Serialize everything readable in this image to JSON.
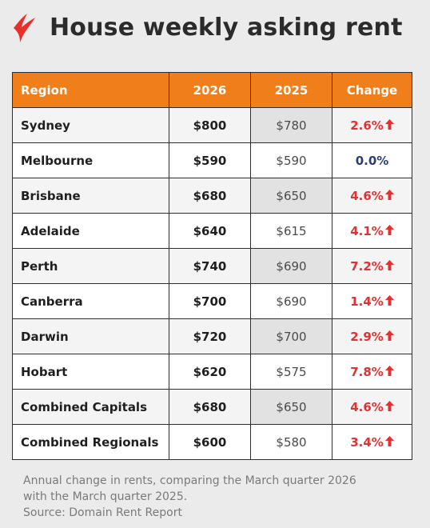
{
  "title": "House weekly asking rent",
  "headers": {
    "region": "Region",
    "y2026": "2026",
    "y2025": "2025",
    "change": "Change"
  },
  "chart_data": {
    "type": "table",
    "columns": [
      "Region",
      "2026",
      "2025",
      "Change"
    ],
    "rows": [
      {
        "region": "Sydney",
        "y2026": "$800",
        "y2025": "$780",
        "change": "2.6%",
        "direction": "up"
      },
      {
        "region": "Melbourne",
        "y2026": "$590",
        "y2025": "$590",
        "change": "0.0%",
        "direction": "flat"
      },
      {
        "region": "Brisbane",
        "y2026": "$680",
        "y2025": "$650",
        "change": "4.6%",
        "direction": "up"
      },
      {
        "region": "Adelaide",
        "y2026": "$640",
        "y2025": "$615",
        "change": "4.1%",
        "direction": "up"
      },
      {
        "region": "Perth",
        "y2026": "$740",
        "y2025": "$690",
        "change": "7.2%",
        "direction": "up"
      },
      {
        "region": "Canberra",
        "y2026": "$700",
        "y2025": "$690",
        "change": "1.4%",
        "direction": "up"
      },
      {
        "region": "Darwin",
        "y2026": "$720",
        "y2025": "$700",
        "change": "2.9%",
        "direction": "up"
      },
      {
        "region": "Hobart",
        "y2026": "$620",
        "y2025": "$575",
        "change": "7.8%",
        "direction": "up"
      },
      {
        "region": "Combined Capitals",
        "y2026": "$680",
        "y2025": "$650",
        "change": "4.6%",
        "direction": "up"
      },
      {
        "region": "Combined Regionals",
        "y2026": "$600",
        "y2025": "$580",
        "change": "3.4%",
        "direction": "up"
      }
    ]
  },
  "footnote": {
    "line1": "Annual change in rents, comparing the March quarter 2026",
    "line2": "with the March quarter 2025.",
    "line3": "Source: Domain Rent Report"
  },
  "colors": {
    "header_bg": "#f07e1b",
    "up": "#e03232",
    "flat": "#2d3e7a",
    "logo": "#e8302a"
  },
  "icons": {
    "logo": "sbs-logo-icon",
    "arrow": "arrow-up-icon"
  }
}
